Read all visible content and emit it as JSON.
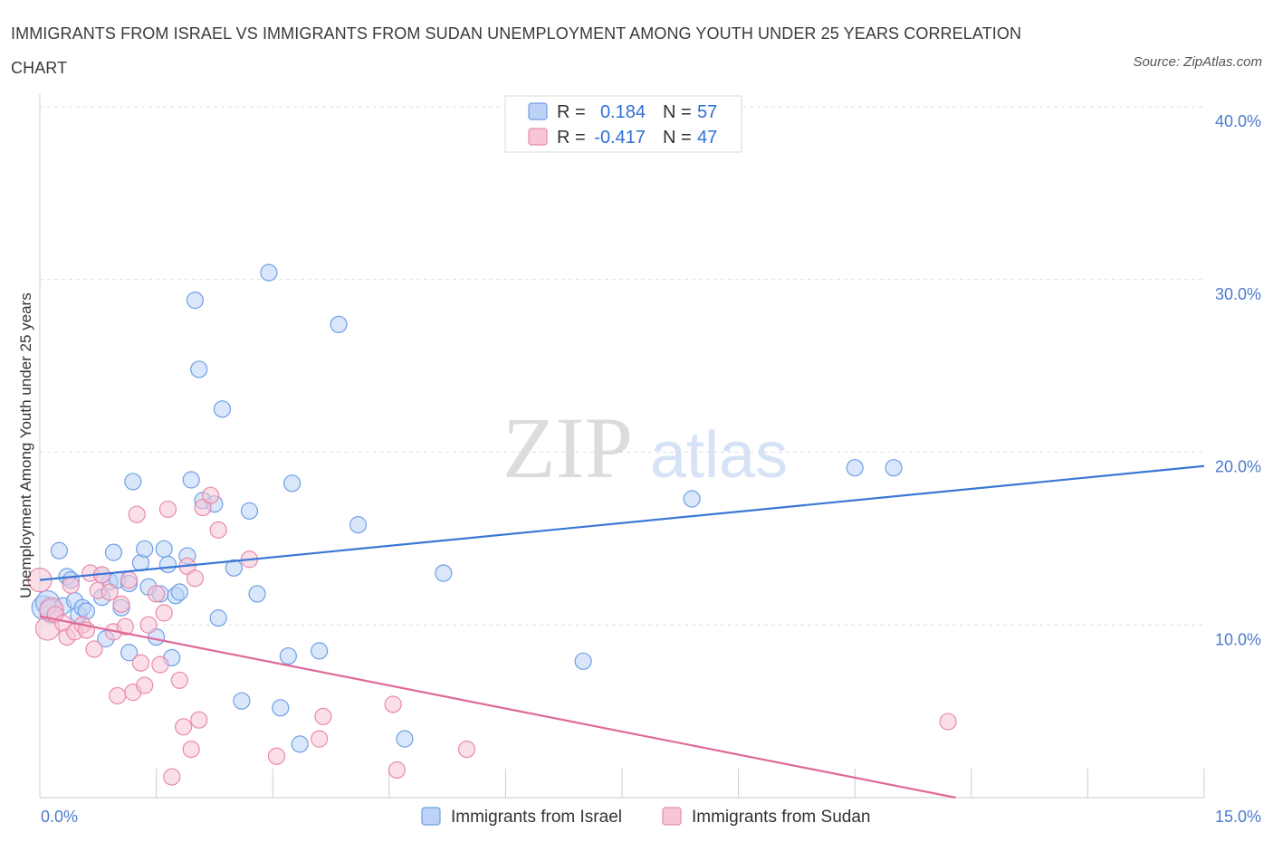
{
  "title": "IMMIGRANTS FROM ISRAEL VS IMMIGRANTS FROM SUDAN UNEMPLOYMENT AMONG YOUTH UNDER 25 YEARS CORRELATION CHART",
  "source": "Source: ZipAtlas.com",
  "watermark": {
    "part1": "ZIP",
    "part2": "atlas"
  },
  "legend_top": [
    {
      "r_label": "R =",
      "r_value": "0.184",
      "n_label": "N =",
      "n_value": "57",
      "color": "#6e9fe6",
      "fill": "#bcd3f5"
    },
    {
      "r_label": "R =",
      "r_value": "-0.417",
      "n_label": "N =",
      "n_value": "47",
      "color": "#e88aab",
      "fill": "#f8c5d6"
    }
  ],
  "chart_data": {
    "type": "scatter",
    "xlabel": "",
    "ylabel": "Unemployment Among Youth under 25 years",
    "xlim": [
      0,
      15
    ],
    "ylim": [
      0,
      40
    ],
    "x_tick_labels": [
      "0.0%",
      "15.0%"
    ],
    "y_tick_labels": [
      "10.0%",
      "20.0%",
      "30.0%",
      "40.0%"
    ],
    "y_ticks": [
      10,
      20,
      30,
      40
    ],
    "grid": true,
    "legend": "top-center",
    "series": [
      {
        "name": "Immigrants from Israel",
        "color": "#3a78d6",
        "fill": "#bcd3f5",
        "stroke": "#6e9fe6",
        "trend": [
          [
            0,
            12.6
          ],
          [
            15,
            19.2
          ]
        ],
        "points": [
          [
            0.05,
            11.0
          ],
          [
            0.1,
            11.3
          ],
          [
            0.15,
            10.8
          ],
          [
            0.25,
            14.3
          ],
          [
            0.3,
            11.1
          ],
          [
            0.35,
            12.8
          ],
          [
            0.4,
            12.6
          ],
          [
            0.45,
            11.4
          ],
          [
            0.5,
            10.6
          ],
          [
            0.55,
            11.0
          ],
          [
            0.6,
            10.8
          ],
          [
            0.9,
            12.5
          ],
          [
            0.8,
            12.9
          ],
          [
            0.8,
            11.6
          ],
          [
            0.85,
            9.2
          ],
          [
            0.95,
            14.2
          ],
          [
            1.0,
            12.6
          ],
          [
            1.05,
            11.0
          ],
          [
            1.15,
            12.4
          ],
          [
            1.15,
            8.4
          ],
          [
            1.2,
            18.3
          ],
          [
            1.3,
            13.6
          ],
          [
            1.35,
            14.4
          ],
          [
            1.4,
            12.2
          ],
          [
            1.5,
            9.3
          ],
          [
            1.55,
            11.8
          ],
          [
            1.6,
            14.4
          ],
          [
            1.65,
            13.5
          ],
          [
            1.7,
            8.1
          ],
          [
            1.75,
            11.7
          ],
          [
            1.8,
            11.9
          ],
          [
            1.9,
            14.0
          ],
          [
            1.95,
            18.4
          ],
          [
            2.0,
            28.8
          ],
          [
            2.05,
            24.8
          ],
          [
            2.1,
            17.2
          ],
          [
            2.25,
            17.0
          ],
          [
            2.3,
            10.4
          ],
          [
            2.35,
            22.5
          ],
          [
            2.5,
            13.3
          ],
          [
            2.6,
            5.6
          ],
          [
            2.7,
            16.6
          ],
          [
            2.8,
            11.8
          ],
          [
            2.95,
            30.4
          ],
          [
            3.1,
            5.2
          ],
          [
            3.2,
            8.2
          ],
          [
            3.25,
            18.2
          ],
          [
            3.35,
            3.1
          ],
          [
            3.6,
            8.5
          ],
          [
            3.85,
            27.4
          ],
          [
            4.1,
            15.8
          ],
          [
            4.7,
            3.4
          ],
          [
            5.2,
            13.0
          ],
          [
            7.0,
            7.9
          ],
          [
            8.4,
            17.3
          ],
          [
            10.5,
            19.1
          ],
          [
            11.0,
            19.1
          ]
        ]
      },
      {
        "name": "Immigrants from Sudan",
        "color": "#e0689a",
        "fill": "#f8c5d6",
        "stroke": "#e88aab",
        "trend": [
          [
            0,
            10.5
          ],
          [
            11.8,
            0
          ]
        ],
        "points": [
          [
            0.0,
            12.6
          ],
          [
            0.1,
            9.8
          ],
          [
            0.15,
            10.9
          ],
          [
            0.2,
            10.6
          ],
          [
            0.3,
            10.1
          ],
          [
            0.35,
            9.3
          ],
          [
            0.4,
            12.3
          ],
          [
            0.45,
            9.6
          ],
          [
            0.55,
            10.0
          ],
          [
            0.6,
            9.7
          ],
          [
            0.65,
            13.0
          ],
          [
            0.7,
            8.6
          ],
          [
            0.75,
            12.0
          ],
          [
            0.8,
            12.9
          ],
          [
            0.9,
            11.9
          ],
          [
            0.95,
            9.6
          ],
          [
            1.0,
            5.9
          ],
          [
            1.05,
            11.2
          ],
          [
            1.1,
            9.9
          ],
          [
            1.2,
            6.1
          ],
          [
            1.25,
            16.4
          ],
          [
            1.3,
            7.8
          ],
          [
            1.35,
            6.5
          ],
          [
            1.4,
            10.0
          ],
          [
            1.5,
            11.8
          ],
          [
            1.55,
            7.7
          ],
          [
            1.6,
            10.7
          ],
          [
            1.65,
            16.7
          ],
          [
            1.7,
            1.2
          ],
          [
            1.8,
            6.8
          ],
          [
            1.85,
            4.1
          ],
          [
            1.9,
            13.4
          ],
          [
            1.95,
            2.8
          ],
          [
            2.0,
            12.7
          ],
          [
            2.05,
            4.5
          ],
          [
            2.1,
            16.8
          ],
          [
            2.2,
            17.5
          ],
          [
            2.3,
            15.5
          ],
          [
            2.7,
            13.8
          ],
          [
            3.05,
            2.4
          ],
          [
            3.6,
            3.4
          ],
          [
            3.65,
            4.7
          ],
          [
            4.55,
            5.4
          ],
          [
            4.6,
            1.6
          ],
          [
            5.5,
            2.8
          ],
          [
            11.7,
            4.4
          ],
          [
            1.15,
            12.6
          ]
        ]
      }
    ]
  },
  "bottom_legend": [
    "Immigrants from Israel",
    "Immigrants from Sudan"
  ]
}
